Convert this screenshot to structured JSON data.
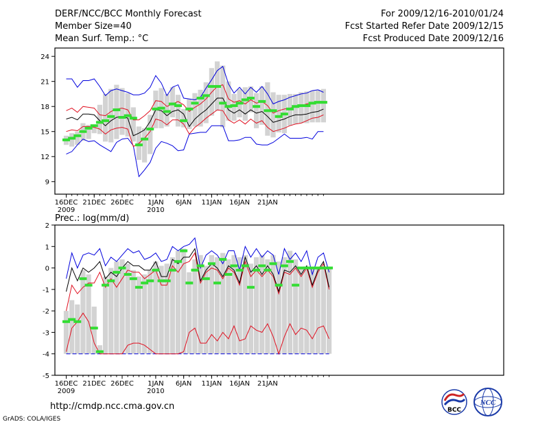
{
  "header": {
    "title": "DERF/NCC/BCC Monthly Forecast",
    "member_size": "Member Size=40",
    "variable": "Mean Surf. Temp.: °C",
    "period": "For 2009/12/16-2010/01/24",
    "started": "Fcst Started Refer Date 2009/12/15",
    "produced": "Fcst Produced Date 2009/12/16"
  },
  "footer": {
    "url": "http://cmdp.ncc.cma.gov.cn",
    "credit": "GrADS: COLA/IGES",
    "logo_bcc": "BCC",
    "logo_ncc": "NCC"
  },
  "colors": {
    "box": "#d3d3d3",
    "mean": "#000000",
    "std": "#e01020",
    "extreme": "#0000dd",
    "median": "#33dd33",
    "axis": "#000000",
    "logo_red": "#cc2222",
    "logo_blue": "#1a3aa8"
  },
  "chart_data": [
    {
      "type": "line",
      "title": "Mean Surf. Temp.: °C",
      "ylim": [
        7.5,
        25
      ],
      "yticks": [
        9,
        12,
        15,
        18,
        21,
        24
      ],
      "xticks": [
        {
          "day": 0,
          "label": "16DEC",
          "sub": "2009"
        },
        {
          "day": 5,
          "label": "21DEC",
          "sub": ""
        },
        {
          "day": 10,
          "label": "26DEC",
          "sub": ""
        },
        {
          "day": 16,
          "label": "1JAN",
          "sub": "2010"
        },
        {
          "day": 21,
          "label": "6JAN",
          "sub": ""
        },
        {
          "day": 26,
          "label": "11JAN",
          "sub": ""
        },
        {
          "day": 31,
          "label": "16JAN",
          "sub": ""
        },
        {
          "day": 36,
          "label": "21JAN",
          "sub": ""
        }
      ],
      "series": [
        {
          "name": "max",
          "values": [
            21.3,
            21.3,
            20.3,
            21.1,
            21.1,
            21.3,
            20.4,
            19.3,
            19.9,
            20.1,
            19.9,
            19.7,
            19.4,
            19.4,
            19.6,
            20.3,
            21.7,
            20.8,
            19.3,
            20.3,
            20.6,
            19.0,
            18.9,
            18.8,
            19.1,
            20.2,
            21.2,
            22.3,
            22.8,
            20.7,
            19.6,
            20.3,
            19.5,
            20.3,
            19.7,
            20.4,
            19.5,
            18.3,
            18.6,
            18.8,
            19.1,
            19.3,
            19.5,
            19.6,
            19.9,
            20.0,
            19.7
          ]
        },
        {
          "name": "std_high",
          "values": [
            17.5,
            17.8,
            17.3,
            18.0,
            17.9,
            17.8,
            17.0,
            16.9,
            17.4,
            17.7,
            17.8,
            17.6,
            16.4,
            16.4,
            16.9,
            17.5,
            18.7,
            18.6,
            18.0,
            18.3,
            18.6,
            18.2,
            17.4,
            17.9,
            18.3,
            18.9,
            19.7,
            20.4,
            20.6,
            18.9,
            18.5,
            18.7,
            18.3,
            18.8,
            18.4,
            18.6,
            18.1,
            17.2,
            17.5,
            17.7,
            17.8,
            18.0,
            18.1,
            18.3,
            18.4,
            18.6,
            18.6
          ]
        },
        {
          "name": "mean",
          "values": [
            16.5,
            16.7,
            16.4,
            17.1,
            17.1,
            17.0,
            16.3,
            15.7,
            16.3,
            16.7,
            16.8,
            16.6,
            14.5,
            14.8,
            15.2,
            16.2,
            17.6,
            17.5,
            16.9,
            17.4,
            17.6,
            17.1,
            15.6,
            16.5,
            17.1,
            17.6,
            18.3,
            19.0,
            19.0,
            17.6,
            17.2,
            17.6,
            17.1,
            17.6,
            17.2,
            17.4,
            16.8,
            16.1,
            16.3,
            16.5,
            16.8,
            17.0,
            17.0,
            17.1,
            17.3,
            17.4,
            17.7
          ]
        },
        {
          "name": "std_low",
          "values": [
            15.0,
            15.2,
            15.1,
            15.6,
            15.6,
            15.5,
            15.3,
            14.7,
            15.2,
            15.4,
            15.5,
            15.3,
            13.2,
            13.6,
            14.2,
            15.0,
            16.5,
            16.3,
            15.8,
            16.4,
            16.4,
            15.9,
            14.7,
            15.5,
            16.0,
            16.6,
            17.1,
            17.6,
            17.5,
            16.4,
            16.0,
            16.4,
            15.9,
            16.5,
            16.0,
            16.3,
            15.5,
            15.0,
            15.2,
            15.4,
            15.7,
            15.9,
            16.0,
            16.3,
            16.6,
            16.7,
            17.0
          ]
        },
        {
          "name": "min",
          "values": [
            12.3,
            12.6,
            13.4,
            14.1,
            13.8,
            13.9,
            13.4,
            13.0,
            12.6,
            13.7,
            14.1,
            14.2,
            13.3,
            9.6,
            10.4,
            11.3,
            13.0,
            13.8,
            13.6,
            13.3,
            12.7,
            12.8,
            14.7,
            14.8,
            14.9,
            14.9,
            15.7,
            15.7,
            15.7,
            13.9,
            13.9,
            14.0,
            14.3,
            14.3,
            13.5,
            13.4,
            13.4,
            13.7,
            14.2,
            14.7,
            14.2,
            14.2,
            14.2,
            14.3,
            14.1,
            15.0,
            15.0
          ]
        },
        {
          "name": "median",
          "values": [
            14.0,
            14.2,
            14.5,
            15.0,
            15.4,
            15.7,
            16.1,
            16.3,
            16.8,
            17.6,
            16.7,
            16.9,
            16.6,
            13.4,
            14.1,
            15.3,
            17.7,
            17.8,
            17.4,
            18.3,
            18.1,
            16.3,
            17.7,
            18.4,
            19.0,
            19.3,
            20.4,
            20.4,
            18.4,
            18.0,
            18.1,
            18.4,
            18.8,
            19.0,
            18.0,
            18.6,
            17.5,
            17.5,
            16.8,
            17.1,
            17.7,
            18.0,
            18.1,
            18.1,
            18.4,
            18.5,
            18.5
          ]
        },
        {
          "name": "box_high",
          "values": [
            14.5,
            14.8,
            15.0,
            16.0,
            15.8,
            15.6,
            18.2,
            19.5,
            20.1,
            20.6,
            20.2,
            19.6,
            17.9,
            15.6,
            15.4,
            17.0,
            19.9,
            20.2,
            19.5,
            20.3,
            19.4,
            17.7,
            18.9,
            19.6,
            20.0,
            20.9,
            22.6,
            23.4,
            22.9,
            21.0,
            19.5,
            20.1,
            20.3,
            20.4,
            19.6,
            20.4,
            20.9,
            19.7,
            19.4,
            19.4,
            19.5,
            19.5,
            19.7,
            19.8,
            19.9,
            20.0,
            20.1
          ]
        },
        {
          "name": "box_low",
          "values": [
            13.4,
            13.2,
            13.4,
            13.9,
            14.1,
            14.8,
            14.7,
            13.8,
            13.7,
            14.1,
            14.6,
            14.4,
            13.8,
            11.6,
            11.3,
            12.3,
            15.4,
            15.4,
            15.6,
            16.7,
            15.6,
            15.5,
            15.3,
            15.6,
            15.6,
            16.0,
            16.9,
            17.5,
            15.5,
            16.3,
            16.3,
            16.7,
            16.3,
            17.3,
            15.4,
            15.8,
            14.5,
            14.3,
            14.9,
            14.8,
            15.7,
            15.9,
            16.0,
            16.0,
            16.1,
            16.1,
            16.1
          ]
        }
      ]
    },
    {
      "type": "line",
      "title": "Prec.: log(mm/d)",
      "ylim": [
        -5,
        2
      ],
      "yticks": [
        -5,
        -4,
        -3,
        -2,
        -1,
        0,
        1,
        2
      ],
      "xticks": [
        {
          "day": 0,
          "label": "16DEC",
          "sub": "2009"
        },
        {
          "day": 5,
          "label": "21DEC",
          "sub": ""
        },
        {
          "day": 10,
          "label": "26DEC",
          "sub": ""
        },
        {
          "day": 16,
          "label": "1JAN",
          "sub": "2010"
        },
        {
          "day": 21,
          "label": "6JAN",
          "sub": ""
        },
        {
          "day": 26,
          "label": "11JAN",
          "sub": ""
        },
        {
          "day": 31,
          "label": "16JAN",
          "sub": ""
        },
        {
          "day": 36,
          "label": "21JAN",
          "sub": ""
        }
      ],
      "series": [
        {
          "name": "max",
          "values": [
            -0.5,
            0.7,
            0.0,
            0.6,
            0.7,
            0.6,
            0.9,
            0.1,
            0.5,
            0.3,
            0.6,
            0.9,
            0.7,
            0.8,
            0.4,
            0.5,
            0.7,
            0.3,
            0.4,
            1.0,
            0.8,
            1.0,
            1.1,
            1.4,
            0.0,
            0.6,
            0.8,
            0.6,
            0.2,
            0.8,
            0.8,
            -0.1,
            1.0,
            0.5,
            0.9,
            0.5,
            0.8,
            0.6,
            -0.3,
            0.9,
            0.4,
            0.7,
            0.3,
            0.8,
            -0.3,
            0.5,
            0.7,
            -0.2
          ]
        },
        {
          "name": "mean",
          "values": [
            -1.1,
            0.0,
            -0.6,
            0.0,
            -0.2,
            0.0,
            0.3,
            -0.5,
            -0.2,
            -0.4,
            0.0,
            0.3,
            0.1,
            0.1,
            -0.1,
            -0.1,
            0.3,
            -0.4,
            -0.4,
            0.4,
            0.2,
            0.5,
            0.5,
            0.9,
            -0.6,
            -0.1,
            0.2,
            0.0,
            -0.4,
            0.1,
            -0.1,
            -0.7,
            0.5,
            -0.2,
            0.1,
            -0.3,
            0.1,
            -0.3,
            -1.1,
            -0.1,
            -0.2,
            0.1,
            -0.3,
            0.1,
            -0.8,
            -0.1,
            0.3,
            -0.9
          ]
        },
        {
          "name": "std_high",
          "values": [
            -2.0,
            -0.8,
            -1.2,
            -0.9,
            -0.7,
            -0.7,
            -0.2,
            -0.9,
            -0.5,
            -0.9,
            -0.5,
            -0.1,
            -0.2,
            -0.2,
            -0.5,
            -0.3,
            -0.1,
            -0.8,
            -0.8,
            0.1,
            -0.2,
            0.2,
            0.3,
            0.7,
            -0.7,
            -0.2,
            -0.0,
            -0.1,
            -0.5,
            -0.0,
            -0.2,
            -0.8,
            0.3,
            -0.4,
            -0.1,
            -0.4,
            -0.1,
            -0.4,
            -1.2,
            -0.2,
            -0.3,
            0.0,
            -0.4,
            0.0,
            -0.9,
            -0.2,
            0.2,
            -1.0
          ]
        },
        {
          "name": "std_low",
          "values": [
            -3.9,
            -2.8,
            -2.5,
            -2.1,
            -2.5,
            -3.5,
            -4.0,
            -4.0,
            -4.0,
            -4.0,
            -4.0,
            -3.6,
            -3.5,
            -3.5,
            -3.6,
            -3.8,
            -4.0,
            -4.0,
            -4.0,
            -4.0,
            -4.0,
            -3.9,
            -3.0,
            -2.8,
            -3.5,
            -3.5,
            -3.1,
            -3.4,
            -3.0,
            -3.3,
            -2.7,
            -3.4,
            -3.3,
            -2.7,
            -2.9,
            -3.0,
            -2.6,
            -3.2,
            -4.0,
            -3.2,
            -2.6,
            -3.1,
            -2.8,
            -2.9,
            -3.3,
            -2.8,
            -2.7,
            -3.3
          ]
        },
        {
          "name": "floor",
          "values": [
            -4.0,
            -4.0,
            -4.0,
            -4.0,
            -4.0,
            -4.0,
            -4.0,
            -4.0,
            -4.0,
            -4.0,
            -4.0,
            -4.0,
            -4.0,
            -4.0,
            -4.0,
            -4.0,
            -4.0,
            -4.0,
            -4.0,
            -4.0,
            -4.0,
            -4.0,
            -4.0,
            -4.0,
            -4.0,
            -4.0,
            -4.0,
            -4.0,
            -4.0,
            -4.0,
            -4.0,
            -4.0,
            -4.0,
            -4.0,
            -4.0,
            -4.0,
            -4.0,
            -4.0,
            -4.0,
            -4.0,
            -4.0,
            -4.0,
            -4.0,
            -4.0,
            -4.0,
            -4.0,
            -4.0,
            -4.0
          ]
        },
        {
          "name": "median",
          "values": [
            -2.5,
            -2.4,
            -2.5,
            -0.5,
            -0.8,
            -2.8,
            -3.9,
            -0.8,
            -0.6,
            -0.2,
            0.0,
            -0.3,
            -0.5,
            -0.9,
            -0.7,
            -0.6,
            -0.1,
            -0.6,
            -0.6,
            -0.1,
            0.3,
            0.8,
            -0.7,
            -0.1,
            0.1,
            -0.5,
            0.2,
            -0.7,
            0.4,
            -0.3,
            0.1,
            -0.1,
            0.1,
            -0.9,
            -0.1,
            0.1,
            -0.1,
            0.2,
            -0.8,
            0.1,
            0.3,
            -0.8,
            0.0,
            0.0,
            0.0,
            0.0,
            0.0,
            0.0
          ]
        },
        {
          "name": "box_high",
          "values": [
            -2.0,
            -1.5,
            -1.7,
            -0.1,
            -0.3,
            -1.8,
            -3.6,
            -0.4,
            0.0,
            0.3,
            0.4,
            0.2,
            -0.1,
            -0.4,
            -0.3,
            -0.1,
            0.3,
            0.1,
            0.2,
            0.5,
            0.8,
            0.9,
            -0.2,
            0.4,
            0.6,
            0.1,
            0.6,
            0.5,
            0.7,
            0.4,
            0.6,
            0.5,
            0.6,
            0.2,
            0.5,
            0.6,
            0.4,
            0.6,
            0.3,
            0.5,
            0.8,
            0.4,
            0.0,
            0.0,
            0.0,
            0.0,
            0.0,
            0.0
          ]
        },
        {
          "name": "box_low",
          "values": [
            -4.0,
            -4.0,
            -4.0,
            -4.0,
            -4.0,
            -4.0,
            -4.0,
            -4.0,
            -4.0,
            -4.0,
            -4.0,
            -4.0,
            -4.0,
            -4.0,
            -4.0,
            -4.0,
            -4.0,
            -4.0,
            -4.0,
            -4.0,
            -4.0,
            -4.0,
            -4.0,
            -4.0,
            -4.0,
            -4.0,
            -4.0,
            -4.0,
            -4.0,
            -4.0,
            -4.0,
            -4.0,
            -4.0,
            -4.0,
            -4.0,
            -4.0,
            -4.0,
            -4.0,
            -4.0,
            -4.0,
            -4.0,
            -4.0,
            -4.0,
            -4.0,
            -4.0,
            -4.0,
            -4.0,
            -4.0
          ]
        }
      ]
    }
  ]
}
